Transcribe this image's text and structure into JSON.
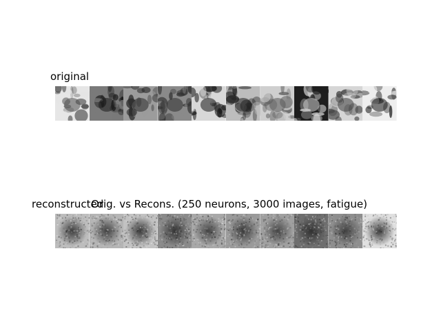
{
  "labels": {
    "original": "original",
    "reconstructed": "reconstructed",
    "title": "Orig. vs Recons. (250 neurons, 3000 images, fatigue)"
  },
  "original_images": [
    {
      "name": "apple-image",
      "bg": "#e6e6e6",
      "fg": "#505050"
    },
    {
      "name": "basket-image",
      "bg": "#7a7a7a",
      "fg": "#1a1a1a"
    },
    {
      "name": "building-image",
      "bg": "#9c9c9c",
      "fg": "#2a2a2a"
    },
    {
      "name": "plant-image",
      "bg": "#8a8a8a",
      "fg": "#303030"
    },
    {
      "name": "tv-dog-image",
      "bg": "#d8d8d8",
      "fg": "#1a1a1a"
    },
    {
      "name": "tree-image",
      "bg": "#bdbdbd",
      "fg": "#202020"
    },
    {
      "name": "bush-image",
      "bg": "#cfcfcf",
      "fg": "#5a5a5a"
    },
    {
      "name": "dark-dog-image",
      "bg": "#1e1e1e",
      "fg": "#d0d0d0"
    },
    {
      "name": "bench-image",
      "bg": "#d6d6d6",
      "fg": "#404040"
    },
    {
      "name": "beetle-image",
      "bg": "#eeeeee",
      "fg": "#1a1a1a"
    }
  ],
  "reconstructed_images": [
    {
      "name": "recon-1",
      "bg": "#bdbdbd",
      "fg": "#2e2e2e"
    },
    {
      "name": "recon-2",
      "bg": "#b5b5b5",
      "fg": "#333333"
    },
    {
      "name": "recon-3",
      "bg": "#c2c2c2",
      "fg": "#2a2a2a"
    },
    {
      "name": "recon-4",
      "bg": "#8a8a8a",
      "fg": "#2a2a2a"
    },
    {
      "name": "recon-5",
      "bg": "#a8a8a8",
      "fg": "#3a3a3a"
    },
    {
      "name": "recon-6",
      "bg": "#9a9a9a",
      "fg": "#333333"
    },
    {
      "name": "recon-7",
      "bg": "#a0a0a0",
      "fg": "#3c3c3c"
    },
    {
      "name": "recon-8",
      "bg": "#6e6e6e",
      "fg": "#2a2a2a"
    },
    {
      "name": "recon-9",
      "bg": "#8e8e8e",
      "fg": "#3a3a3a"
    },
    {
      "name": "recon-10",
      "bg": "#e0e0e0",
      "fg": "#2a2a2a"
    }
  ]
}
